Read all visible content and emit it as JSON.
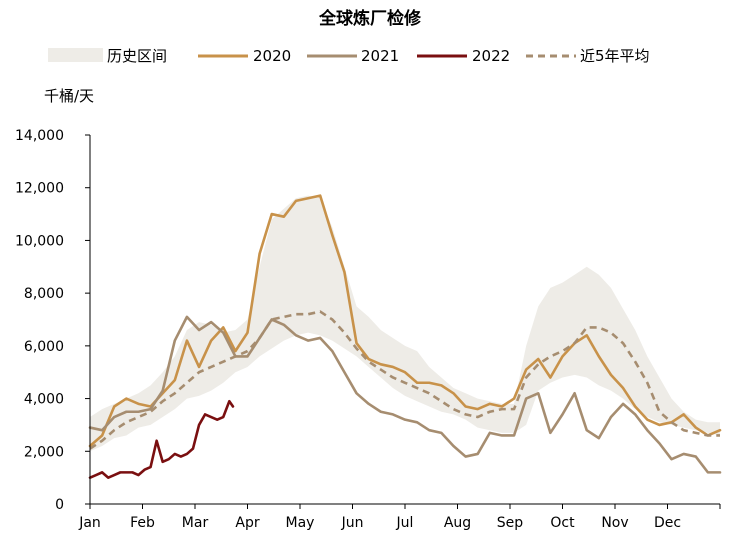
{
  "chart_data": {
    "type": "line",
    "title": "全球炼厂检修",
    "ylabel": "千桶/天",
    "ylim": [
      0,
      14000
    ],
    "ytick_labels": [
      "0",
      "2,000",
      "4,000",
      "6,000",
      "8,000",
      "10,000",
      "12,000",
      "14,000"
    ],
    "yticks": [
      0,
      2000,
      4000,
      6000,
      8000,
      10000,
      12000,
      14000
    ],
    "xlim": [
      1,
      53
    ],
    "x_unit": "week",
    "month_labels": [
      "Jan",
      "Feb",
      "Mar",
      "Apr",
      "May",
      "Jun",
      "Jul",
      "Aug",
      "Sep",
      "Oct",
      "Nov",
      "Dec"
    ],
    "grid": false,
    "legend_position": "top",
    "legend": [
      "历史区间",
      "2020",
      "2021",
      "2022",
      "近5年平均"
    ],
    "band": {
      "name": "历史区间",
      "color": "#eeece7",
      "x": [
        1,
        2,
        3,
        4,
        5,
        6,
        7,
        8,
        9,
        10,
        11,
        12,
        13,
        14,
        15,
        16,
        17,
        18,
        19,
        20,
        21,
        22,
        23,
        24,
        25,
        26,
        27,
        28,
        29,
        30,
        31,
        32,
        33,
        34,
        35,
        36,
        37,
        38,
        39,
        40,
        41,
        42,
        43,
        44,
        45,
        46,
        47,
        48,
        49,
        50,
        51,
        52,
        53
      ],
      "low": [
        2000,
        2200,
        2500,
        2600,
        2900,
        3000,
        3300,
        3600,
        4000,
        4100,
        4300,
        4600,
        5000,
        5200,
        5600,
        5900,
        6200,
        6400,
        6500,
        6400,
        6200,
        5900,
        5600,
        5200,
        4800,
        4400,
        4100,
        3900,
        3700,
        3500,
        3400,
        3200,
        2900,
        2800,
        2700,
        2700,
        3000,
        4300,
        4600,
        4800,
        4900,
        4800,
        4500,
        4300,
        4000,
        3600,
        3300,
        3100,
        3000,
        2900,
        2800,
        2700,
        2600
      ],
      "high": [
        3300,
        3600,
        3800,
        4000,
        4200,
        4500,
        5000,
        5600,
        6600,
        6900,
        6800,
        6500,
        6600,
        7000,
        9000,
        10800,
        11200,
        11600,
        11700,
        11600,
        10500,
        9000,
        7500,
        7100,
        6600,
        6300,
        6000,
        5800,
        5200,
        4800,
        4400,
        4200,
        4000,
        3900,
        3800,
        3800,
        6000,
        7500,
        8200,
        8400,
        8700,
        9000,
        8700,
        8200,
        7400,
        6600,
        5600,
        4800,
        4000,
        3500,
        3200,
        3100,
        3100
      ]
    },
    "series": [
      {
        "name": "2020",
        "color": "#c8924a",
        "dash": false,
        "x": [
          1,
          2,
          3,
          4,
          5,
          6,
          7,
          8,
          9,
          10,
          11,
          12,
          13,
          14,
          15,
          16,
          17,
          18,
          19,
          20,
          21,
          22,
          23,
          24,
          25,
          26,
          27,
          28,
          29,
          30,
          31,
          32,
          33,
          34,
          35,
          36,
          37,
          38,
          39,
          40,
          41,
          42,
          43,
          44,
          45,
          46,
          47,
          48,
          49,
          50,
          51,
          52,
          53
        ],
        "values": [
          2200,
          2600,
          3700,
          4000,
          3800,
          3700,
          4200,
          4700,
          6200,
          5200,
          6200,
          6700,
          5800,
          6500,
          9500,
          11000,
          10900,
          11500,
          11600,
          11700,
          10200,
          8800,
          6100,
          5500,
          5300,
          5200,
          5000,
          4600,
          4600,
          4500,
          4200,
          3700,
          3600,
          3800,
          3700,
          4000,
          5100,
          5500,
          4800,
          5600,
          6100,
          6400,
          5600,
          4900,
          4400,
          3700,
          3200,
          3000,
          3100,
          3400,
          2900,
          2600,
          2800
        ]
      },
      {
        "name": "2021",
        "color": "#a68d70",
        "dash": false,
        "x": [
          1,
          2,
          3,
          4,
          5,
          6,
          7,
          8,
          9,
          10,
          11,
          12,
          13,
          14,
          15,
          16,
          17,
          18,
          19,
          20,
          21,
          22,
          23,
          24,
          25,
          26,
          27,
          28,
          29,
          30,
          31,
          32,
          33,
          34,
          35,
          36,
          37,
          38,
          39,
          40,
          41,
          42,
          43,
          44,
          45,
          46,
          47,
          48,
          49,
          50,
          51,
          52,
          53
        ],
        "values": [
          2900,
          2800,
          3300,
          3500,
          3500,
          3600,
          4300,
          6200,
          7100,
          6600,
          6900,
          6500,
          5600,
          5600,
          6300,
          7000,
          6800,
          6400,
          6200,
          6300,
          5800,
          5000,
          4200,
          3800,
          3500,
          3400,
          3200,
          3100,
          2800,
          2700,
          2200,
          1800,
          1900,
          2700,
          2600,
          2600,
          4000,
          4200,
          2700,
          3400,
          4200,
          2800,
          2500,
          3300,
          3800,
          3400,
          2800,
          2300,
          1700,
          1900,
          1800,
          1200,
          1200
        ]
      },
      {
        "name": "2022",
        "color": "#7a0f10",
        "dash": false,
        "x": [
          1,
          1.5,
          2,
          2.5,
          3,
          3.5,
          4,
          4.5,
          5,
          5.5,
          6,
          6.5,
          7,
          7.5,
          8,
          8.5,
          9,
          9.5,
          10,
          10.5,
          11,
          11.5,
          12,
          12.5,
          12.8
        ],
        "values": [
          1000,
          1100,
          1200,
          1000,
          1100,
          1200,
          1200,
          1200,
          1100,
          1300,
          1400,
          2400,
          1600,
          1700,
          1900,
          1800,
          1900,
          2100,
          3000,
          3400,
          3300,
          3200,
          3300,
          3900,
          3700
        ]
      },
      {
        "name": "近5年平均",
        "color": "#a68d70",
        "dash": true,
        "x": [
          1,
          2,
          3,
          4,
          5,
          6,
          7,
          8,
          9,
          10,
          11,
          12,
          13,
          14,
          15,
          16,
          17,
          18,
          19,
          20,
          21,
          22,
          23,
          24,
          25,
          26,
          27,
          28,
          29,
          30,
          31,
          32,
          33,
          34,
          35,
          36,
          37,
          38,
          39,
          40,
          41,
          42,
          43,
          44,
          45,
          46,
          47,
          48,
          49,
          50,
          51,
          52,
          53
        ],
        "values": [
          2100,
          2400,
          2800,
          3100,
          3300,
          3500,
          3900,
          4200,
          4600,
          5000,
          5200,
          5400,
          5600,
          5800,
          6300,
          7000,
          7100,
          7200,
          7200,
          7300,
          7000,
          6500,
          5900,
          5400,
          5100,
          4800,
          4600,
          4400,
          4200,
          3900,
          3600,
          3400,
          3300,
          3500,
          3600,
          3600,
          4800,
          5300,
          5600,
          5800,
          6100,
          6700,
          6700,
          6500,
          6100,
          5400,
          4600,
          3500,
          3100,
          2800,
          2700,
          2600,
          2600
        ]
      }
    ]
  }
}
